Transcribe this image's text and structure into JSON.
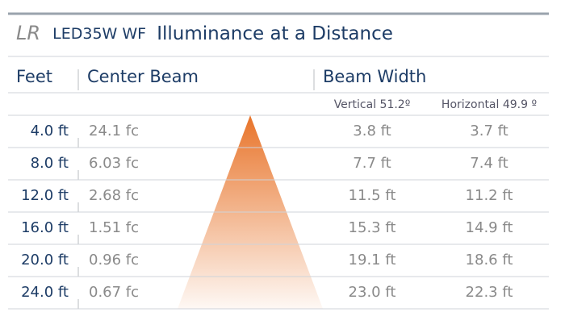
{
  "header": {
    "title": {
      "prefix": "LR",
      "model": "LED35W WF",
      "text": "Illuminance at a Distance"
    }
  },
  "table": {
    "columns": [
      "Feet",
      "Center Beam",
      "Beam Width"
    ],
    "subcolumns": [
      "Vertical 51.2º",
      "Horizontal 49.9 º"
    ],
    "rows": [
      [
        "4.0 ft",
        "24.1 fc",
        "3.8 ft",
        "3.7 ft"
      ],
      [
        "8.0 ft",
        "6.03 fc",
        "7.7 ft",
        "7.4 ft"
      ],
      [
        "12.0 ft",
        "2.68 fc",
        "11.5 ft",
        "11.2 ft"
      ],
      [
        "16.0 ft",
        "1.51 fc",
        "15.3 ft",
        "14.9 ft"
      ],
      [
        "20.0 ft",
        "0.96 fc",
        "19.1 ft",
        "18.6 ft"
      ],
      [
        "24.0 ft",
        "0.67 fc",
        "23.0 ft",
        "22.3 ft"
      ]
    ]
  }
}
